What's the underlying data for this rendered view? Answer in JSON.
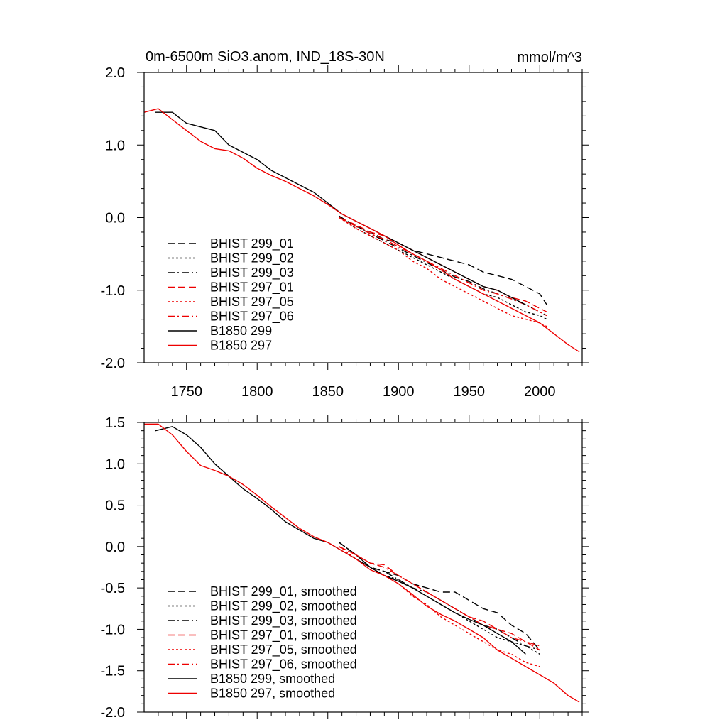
{
  "chart_data": [
    {
      "type": "line",
      "title": "0m-6500m SiO3.anom, IND_18S-30N",
      "units": "mmol/m^3",
      "xlabel": "",
      "ylabel": "",
      "xlim": [
        1720,
        2030
      ],
      "ylim": [
        -2.0,
        2.0
      ],
      "xticks": [
        1750,
        1800,
        1850,
        1900,
        1950,
        2000
      ],
      "yticks": [
        -2.0,
        -1.0,
        0.0,
        1.0,
        2.0
      ],
      "xtick_labels": [
        "1750",
        "1800",
        "1850",
        "1900",
        "1950",
        "2000"
      ],
      "ytick_labels": [
        "-2.0",
        "-1.0",
        "0.0",
        "1.0",
        "2.0"
      ],
      "legend_position": "bottom-left",
      "series": [
        {
          "name": "BHIST 299_01",
          "color": "#000000",
          "dash": "dashed",
          "x": [
            1858,
            1870,
            1880,
            1890,
            1900,
            1910,
            1920,
            1930,
            1940,
            1950,
            1960,
            1970,
            1980,
            1990,
            2000,
            2005
          ],
          "y": [
            0.02,
            -0.12,
            -0.2,
            -0.3,
            -0.35,
            -0.45,
            -0.5,
            -0.55,
            -0.6,
            -0.65,
            -0.75,
            -0.8,
            -0.85,
            -0.95,
            -1.05,
            -1.2
          ]
        },
        {
          "name": "BHIST 299_02",
          "color": "#000000",
          "dash": "dotted",
          "x": [
            1858,
            1870,
            1880,
            1890,
            1900,
            1910,
            1920,
            1930,
            1940,
            1950,
            1960,
            1970,
            1980,
            1990,
            2000,
            2005
          ],
          "y": [
            0.02,
            -0.15,
            -0.25,
            -0.35,
            -0.45,
            -0.55,
            -0.65,
            -0.75,
            -0.85,
            -0.95,
            -1.05,
            -1.1,
            -1.2,
            -1.3,
            -1.35,
            -1.4
          ]
        },
        {
          "name": "BHIST 299_03",
          "color": "#000000",
          "dash": "dashdot",
          "x": [
            1858,
            1870,
            1880,
            1890,
            1900,
            1910,
            1920,
            1930,
            1940,
            1950,
            1960,
            1970,
            1980,
            1990,
            2000,
            2005
          ],
          "y": [
            0.02,
            -0.12,
            -0.22,
            -0.32,
            -0.42,
            -0.52,
            -0.62,
            -0.72,
            -0.82,
            -0.88,
            -0.98,
            -1.05,
            -1.12,
            -1.2,
            -1.3,
            -1.35
          ]
        },
        {
          "name": "BHIST 297_01",
          "color": "#ee0000",
          "dash": "dashed",
          "x": [
            1858,
            1870,
            1880,
            1890,
            1900,
            1910,
            1920,
            1930,
            1940,
            1950,
            1960,
            1970,
            1980,
            1990,
            2000,
            2005
          ],
          "y": [
            0.0,
            -0.1,
            -0.2,
            -0.25,
            -0.35,
            -0.45,
            -0.55,
            -0.65,
            -0.75,
            -0.85,
            -0.95,
            -1.0,
            -1.1,
            -1.15,
            -1.25,
            -1.3
          ]
        },
        {
          "name": "BHIST 297_05",
          "color": "#ee0000",
          "dash": "dotted",
          "x": [
            1858,
            1870,
            1880,
            1890,
            1900,
            1910,
            1920,
            1930,
            1940,
            1950,
            1960,
            1970,
            1980,
            1990,
            2000,
            2005
          ],
          "y": [
            0.0,
            -0.15,
            -0.25,
            -0.35,
            -0.45,
            -0.6,
            -0.7,
            -0.85,
            -0.95,
            -1.05,
            -1.15,
            -1.25,
            -1.35,
            -1.4,
            -1.45,
            -1.5
          ]
        },
        {
          "name": "BHIST 297_06",
          "color": "#ee0000",
          "dash": "dashdot",
          "x": [
            1858,
            1870,
            1880,
            1890,
            1900,
            1910,
            1920,
            1930,
            1940,
            1950,
            1960,
            1970,
            1980,
            1990,
            2000,
            2005
          ],
          "y": [
            0.0,
            -0.12,
            -0.22,
            -0.3,
            -0.4,
            -0.5,
            -0.6,
            -0.7,
            -0.8,
            -0.9,
            -1.0,
            -1.05,
            -1.12,
            -1.2,
            -1.3,
            -1.35
          ]
        },
        {
          "name": "B1850 299",
          "color": "#000000",
          "dash": "solid",
          "x": [
            1728,
            1740,
            1750,
            1760,
            1770,
            1780,
            1790,
            1800,
            1810,
            1820,
            1830,
            1840,
            1850,
            1860,
            1870,
            1880,
            1890,
            1900,
            1910,
            1920,
            1930,
            1940,
            1950,
            1960,
            1970,
            1980,
            1990
          ],
          "y": [
            1.45,
            1.45,
            1.3,
            1.25,
            1.2,
            1.0,
            0.9,
            0.8,
            0.65,
            0.55,
            0.45,
            0.35,
            0.2,
            0.05,
            -0.05,
            -0.15,
            -0.25,
            -0.35,
            -0.45,
            -0.55,
            -0.65,
            -0.75,
            -0.85,
            -0.95,
            -1.0,
            -1.1,
            -1.2
          ]
        },
        {
          "name": "B1850 297",
          "color": "#ee0000",
          "dash": "solid",
          "x": [
            1720,
            1730,
            1740,
            1750,
            1760,
            1770,
            1780,
            1790,
            1800,
            1810,
            1820,
            1830,
            1840,
            1850,
            1860,
            1870,
            1880,
            1890,
            1900,
            1910,
            1920,
            1930,
            1940,
            1950,
            1960,
            1970,
            1980,
            1990,
            2000,
            2010,
            2020,
            2028
          ],
          "y": [
            1.45,
            1.5,
            1.35,
            1.2,
            1.05,
            0.95,
            0.92,
            0.82,
            0.68,
            0.58,
            0.5,
            0.4,
            0.3,
            0.18,
            0.05,
            -0.05,
            -0.15,
            -0.25,
            -0.38,
            -0.5,
            -0.6,
            -0.72,
            -0.85,
            -0.95,
            -1.05,
            -1.15,
            -1.25,
            -1.35,
            -1.45,
            -1.6,
            -1.75,
            -1.85
          ]
        }
      ]
    },
    {
      "type": "line",
      "title": "",
      "xlabel": "",
      "ylabel": "",
      "xlim": [
        1720,
        2030
      ],
      "ylim": [
        -2.0,
        1.5
      ],
      "xticks": [
        1750,
        1800,
        1850,
        1900,
        1950,
        2000
      ],
      "yticks": [
        -2.0,
        -1.5,
        -1.0,
        -0.5,
        0.0,
        0.5,
        1.0,
        1.5
      ],
      "ytick_labels": [
        "-2.0",
        "-1.5",
        "-1.0",
        "-0.5",
        "0.0",
        "0.5",
        "1.0",
        "1.5"
      ],
      "legend_position": "bottom-left",
      "series": [
        {
          "name": "BHIST 299_01, smoothed",
          "color": "#000000",
          "dash": "dashed",
          "x": [
            1858,
            1870,
            1880,
            1890,
            1900,
            1910,
            1920,
            1930,
            1940,
            1950,
            1960,
            1970,
            1980,
            1990,
            2000
          ],
          "y": [
            0.05,
            -0.1,
            -0.25,
            -0.3,
            -0.35,
            -0.45,
            -0.5,
            -0.55,
            -0.55,
            -0.65,
            -0.75,
            -0.8,
            -0.95,
            -1.05,
            -1.25
          ]
        },
        {
          "name": "BHIST 299_02, smoothed",
          "color": "#000000",
          "dash": "dotted",
          "x": [
            1858,
            1870,
            1880,
            1890,
            1900,
            1910,
            1920,
            1930,
            1940,
            1950,
            1960,
            1970,
            1980,
            1990,
            2000
          ],
          "y": [
            0.05,
            -0.1,
            -0.25,
            -0.35,
            -0.4,
            -0.5,
            -0.6,
            -0.7,
            -0.8,
            -0.9,
            -1.0,
            -1.1,
            -1.15,
            -1.2,
            -1.3
          ]
        },
        {
          "name": "BHIST 299_03, smoothed",
          "color": "#000000",
          "dash": "dashdot",
          "x": [
            1858,
            1870,
            1880,
            1890,
            1900,
            1910,
            1920,
            1930,
            1940,
            1950,
            1960,
            1970,
            1980,
            1990,
            2000
          ],
          "y": [
            0.05,
            -0.1,
            -0.25,
            -0.3,
            -0.4,
            -0.5,
            -0.55,
            -0.65,
            -0.75,
            -0.85,
            -0.95,
            -1.0,
            -1.1,
            -1.2,
            -1.25
          ]
        },
        {
          "name": "BHIST 297_01, smoothed",
          "color": "#ee0000",
          "dash": "dashed",
          "x": [
            1858,
            1870,
            1880,
            1890,
            1900,
            1910,
            1920,
            1930,
            1940,
            1950,
            1960,
            1970,
            1980,
            1990,
            2000
          ],
          "y": [
            0.0,
            -0.1,
            -0.2,
            -0.22,
            -0.35,
            -0.45,
            -0.55,
            -0.65,
            -0.75,
            -0.85,
            -0.9,
            -1.0,
            -1.05,
            -1.15,
            -1.25
          ]
        },
        {
          "name": "BHIST 297_05, smoothed",
          "color": "#ee0000",
          "dash": "dotted",
          "x": [
            1858,
            1870,
            1880,
            1890,
            1900,
            1910,
            1920,
            1930,
            1940,
            1950,
            1960,
            1970,
            1980,
            1990,
            2000
          ],
          "y": [
            0.0,
            -0.15,
            -0.25,
            -0.35,
            -0.45,
            -0.6,
            -0.7,
            -0.85,
            -0.95,
            -1.05,
            -1.15,
            -1.25,
            -1.3,
            -1.4,
            -1.45
          ]
        },
        {
          "name": "BHIST 297_06, smoothed",
          "color": "#ee0000",
          "dash": "dashdot",
          "x": [
            1858,
            1870,
            1880,
            1890,
            1900,
            1910,
            1920,
            1930,
            1940,
            1950,
            1960,
            1970,
            1980,
            1990,
            2000
          ],
          "y": [
            0.0,
            -0.1,
            -0.2,
            -0.25,
            -0.35,
            -0.45,
            -0.55,
            -0.65,
            -0.75,
            -0.85,
            -0.95,
            -1.0,
            -1.1,
            -1.15,
            -1.2
          ]
        },
        {
          "name": "B1850 299, smoothed",
          "color": "#000000",
          "dash": "solid",
          "x": [
            1728,
            1740,
            1750,
            1760,
            1770,
            1780,
            1790,
            1800,
            1810,
            1820,
            1830,
            1840,
            1850,
            1860,
            1870,
            1880,
            1890,
            1900,
            1910,
            1920,
            1930,
            1940,
            1950,
            1960,
            1970,
            1980,
            1990
          ],
          "y": [
            1.4,
            1.45,
            1.35,
            1.2,
            1.0,
            0.85,
            0.7,
            0.58,
            0.45,
            0.3,
            0.2,
            0.1,
            0.05,
            -0.05,
            -0.15,
            -0.25,
            -0.35,
            -0.42,
            -0.5,
            -0.6,
            -0.7,
            -0.8,
            -0.88,
            -0.95,
            -1.05,
            -1.15,
            -1.3
          ]
        },
        {
          "name": "B1850 297, smoothed",
          "color": "#ee0000",
          "dash": "solid",
          "x": [
            1720,
            1730,
            1740,
            1750,
            1760,
            1770,
            1780,
            1790,
            1800,
            1810,
            1820,
            1830,
            1840,
            1850,
            1860,
            1870,
            1880,
            1890,
            1900,
            1910,
            1920,
            1930,
            1940,
            1950,
            1960,
            1970,
            1980,
            1990,
            2000,
            2010,
            2020,
            2028
          ],
          "y": [
            1.48,
            1.48,
            1.35,
            1.15,
            0.98,
            0.92,
            0.85,
            0.75,
            0.62,
            0.48,
            0.35,
            0.22,
            0.12,
            0.05,
            -0.05,
            -0.15,
            -0.28,
            -0.35,
            -0.45,
            -0.58,
            -0.72,
            -0.82,
            -0.9,
            -1.0,
            -1.1,
            -1.25,
            -1.35,
            -1.45,
            -1.55,
            -1.65,
            -1.8,
            -1.88
          ]
        }
      ]
    }
  ]
}
